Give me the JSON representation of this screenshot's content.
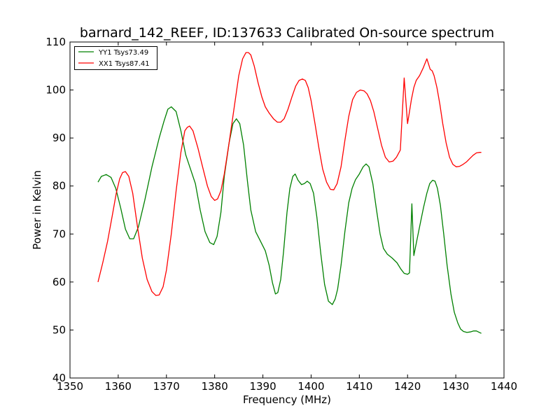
{
  "chart_data": {
    "type": "line",
    "title": "barnard_142_REEF, ID:137633 Calibrated On-source spectrum",
    "xlabel": "Frequency (MHz)",
    "ylabel": "Power in Kelvin",
    "xlim": [
      1350,
      1440
    ],
    "ylim": [
      40,
      110
    ],
    "xticks": [
      1350,
      1360,
      1370,
      1380,
      1390,
      1400,
      1410,
      1420,
      1430,
      1440
    ],
    "yticks": [
      40,
      50,
      60,
      70,
      80,
      90,
      100,
      110
    ],
    "grid": false,
    "legend_position": "top-left",
    "series": [
      {
        "name": "YY1 Tsys73.49",
        "color": "#008000",
        "x": [
          1355.8,
          1356.5,
          1357.5,
          1358.5,
          1359.5,
          1360.5,
          1361.5,
          1362.4,
          1363.2,
          1364.2,
          1365.5,
          1367.0,
          1368.5,
          1369.5,
          1370.3,
          1371.0,
          1372.0,
          1373.0,
          1374.0,
          1375.0,
          1376.0,
          1377.0,
          1378.0,
          1379.0,
          1379.8,
          1380.5,
          1381.3,
          1382.0,
          1383.0,
          1383.8,
          1384.5,
          1385.2,
          1386.0,
          1386.8,
          1387.5,
          1388.5,
          1389.5,
          1390.5,
          1391.3,
          1392.0,
          1392.6,
          1393.1,
          1393.7,
          1394.3,
          1395.0,
          1395.6,
          1396.2,
          1396.7,
          1397.3,
          1398.0,
          1398.6,
          1399.2,
          1399.8,
          1400.5,
          1401.2,
          1402.0,
          1402.8,
          1403.6,
          1404.4,
          1405.0,
          1405.5,
          1406.2,
          1407.0,
          1407.8,
          1408.5,
          1409.2,
          1410.0,
          1410.8,
          1411.4,
          1412.0,
          1412.8,
          1413.5,
          1414.3,
          1415.0,
          1415.8,
          1416.8,
          1417.8,
          1418.6,
          1419.3,
          1420.0,
          1420.4,
          1420.9,
          1421.3,
          1421.7,
          1422.5,
          1423.3,
          1424.0,
          1424.6,
          1425.2,
          1425.7,
          1426.2,
          1426.8,
          1427.5,
          1428.2,
          1429.0,
          1429.7,
          1430.4,
          1431.0,
          1431.6,
          1432.3,
          1433.0,
          1433.7,
          1434.3,
          1434.9,
          1435.3
        ],
        "y": [
          80.8,
          82.0,
          82.4,
          81.8,
          79.5,
          75.5,
          71.0,
          69.0,
          69.0,
          71.5,
          77.0,
          84.0,
          90.0,
          93.5,
          96.0,
          96.5,
          95.5,
          91.5,
          86.5,
          83.5,
          80.5,
          75.0,
          70.5,
          68.2,
          67.8,
          69.5,
          74.5,
          82.0,
          89.0,
          93.0,
          94.0,
          93.0,
          88.5,
          81.0,
          75.0,
          70.5,
          68.5,
          66.5,
          63.5,
          59.8,
          57.5,
          57.8,
          60.5,
          66.5,
          74.5,
          79.5,
          82.0,
          82.5,
          81.2,
          80.3,
          80.5,
          81.0,
          80.5,
          78.5,
          73.5,
          66.0,
          59.5,
          56.0,
          55.3,
          56.5,
          58.5,
          63.5,
          70.5,
          76.5,
          79.5,
          81.3,
          82.5,
          84.0,
          84.6,
          84.0,
          80.5,
          75.5,
          70.0,
          67.0,
          65.8,
          65.0,
          64.0,
          62.7,
          61.8,
          61.6,
          61.9,
          76.3,
          65.5,
          67.5,
          71.5,
          75.5,
          78.5,
          80.5,
          81.2,
          81.0,
          79.5,
          76.0,
          70.0,
          63.5,
          57.5,
          53.7,
          51.5,
          50.2,
          49.7,
          49.5,
          49.6,
          49.8,
          49.8,
          49.5,
          49.3
        ]
      },
      {
        "name": "XX1 Tsys87.41",
        "color": "#ff0000",
        "x": [
          1355.8,
          1356.8,
          1357.8,
          1358.8,
          1359.6,
          1360.3,
          1360.9,
          1361.5,
          1362.2,
          1363.0,
          1364.0,
          1365.0,
          1366.0,
          1367.0,
          1367.8,
          1368.5,
          1369.3,
          1370.0,
          1371.0,
          1372.0,
          1373.0,
          1373.8,
          1374.3,
          1374.8,
          1375.5,
          1376.5,
          1377.5,
          1378.5,
          1379.3,
          1380.0,
          1380.6,
          1381.3,
          1382.0,
          1383.0,
          1384.0,
          1385.0,
          1385.8,
          1386.5,
          1387.0,
          1387.5,
          1388.2,
          1389.0,
          1389.8,
          1390.5,
          1391.3,
          1392.2,
          1393.0,
          1393.7,
          1394.4,
          1395.2,
          1396.0,
          1396.8,
          1397.5,
          1398.2,
          1398.8,
          1399.4,
          1400.0,
          1400.8,
          1401.6,
          1402.4,
          1403.2,
          1404.0,
          1404.7,
          1405.4,
          1406.2,
          1407.0,
          1407.8,
          1408.6,
          1409.4,
          1410.2,
          1411.0,
          1411.6,
          1412.3,
          1413.0,
          1413.8,
          1414.6,
          1415.4,
          1416.2,
          1417.0,
          1417.7,
          1418.5,
          1419.3,
          1420.0,
          1420.4,
          1420.8,
          1421.3,
          1421.8,
          1422.5,
          1423.2,
          1424.0,
          1424.7,
          1425.1,
          1425.5,
          1426.1,
          1426.7,
          1427.3,
          1428.0,
          1428.7,
          1429.4,
          1430.1,
          1430.8,
          1431.5,
          1432.2,
          1432.9,
          1433.6,
          1434.3,
          1435.0,
          1435.3
        ],
        "y": [
          60.0,
          64.0,
          68.5,
          74.0,
          78.5,
          81.5,
          82.8,
          83.0,
          82.0,
          78.5,
          71.5,
          65.0,
          60.5,
          58.0,
          57.2,
          57.3,
          59.0,
          62.5,
          70.0,
          79.0,
          87.0,
          91.5,
          92.2,
          92.5,
          91.5,
          88.0,
          84.0,
          80.0,
          77.8,
          77.0,
          77.3,
          79.0,
          82.5,
          89.0,
          96.0,
          103.0,
          106.5,
          107.8,
          107.8,
          107.3,
          105.0,
          101.5,
          98.5,
          96.5,
          95.2,
          94.0,
          93.3,
          93.3,
          94.0,
          96.0,
          98.5,
          100.8,
          102.0,
          102.3,
          102.0,
          100.5,
          97.8,
          93.0,
          88.0,
          83.5,
          80.8,
          79.3,
          79.2,
          80.5,
          84.0,
          89.5,
          94.5,
          98.0,
          99.5,
          100.0,
          99.8,
          99.2,
          97.8,
          95.5,
          92.0,
          88.5,
          86.0,
          85.0,
          85.2,
          86.0,
          87.5,
          102.5,
          93.0,
          95.5,
          98.0,
          100.5,
          102.0,
          103.0,
          104.5,
          106.5,
          104.3,
          104.0,
          103.0,
          100.5,
          97.0,
          93.0,
          89.0,
          86.0,
          84.5,
          84.0,
          84.1,
          84.5,
          85.0,
          85.7,
          86.4,
          86.9,
          87.0,
          87.0
        ]
      }
    ]
  }
}
